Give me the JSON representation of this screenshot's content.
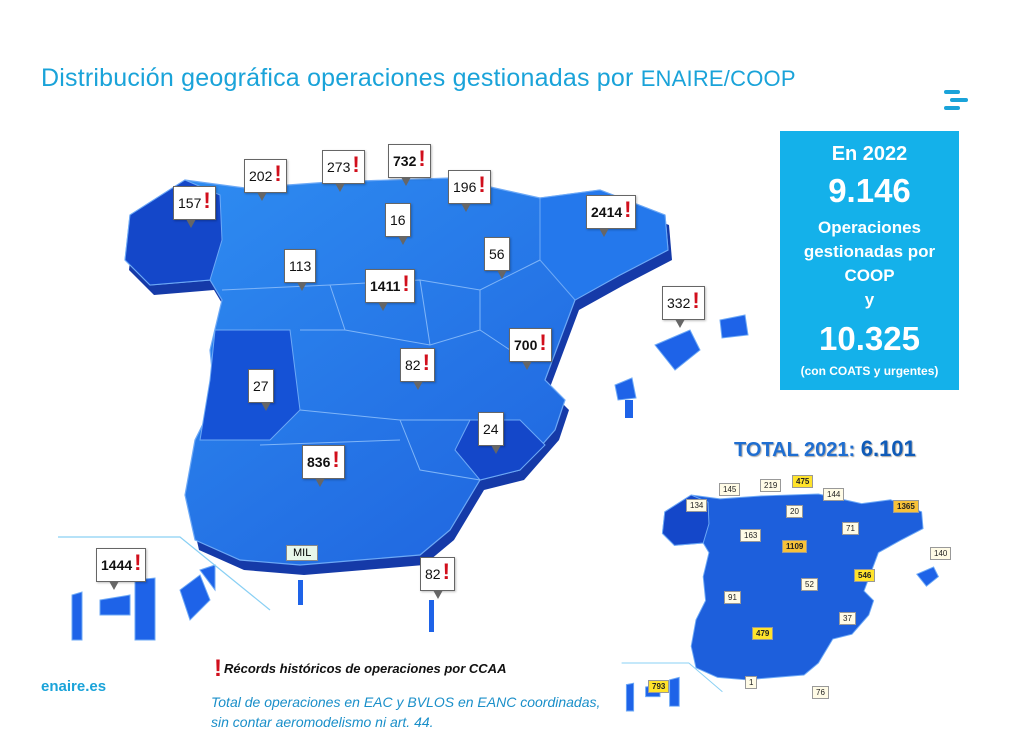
{
  "title": {
    "part1": "Distribución geográfica",
    "part2": "operaciones gestionadas por",
    "part3": "ENAIRE/COOP"
  },
  "logo": {
    "icon": "enaire-logo-icon",
    "color": "#1aa3d9"
  },
  "summary_box": {
    "line1": "En 2022",
    "line2": "9.146",
    "line3a": "Operaciones",
    "line3b": "gestionadas por",
    "line3c": "COOP",
    "line3d": "y",
    "line4": "10.325",
    "line5": "(con COATS y urgentes)",
    "color": "#14b1ea"
  },
  "total_2021": {
    "label": "TOTAL 2021:",
    "value": "6.101"
  },
  "map_2022": {
    "callouts": [
      {
        "value": "157",
        "record": true,
        "bold": false
      },
      {
        "value": "202",
        "record": true,
        "bold": false
      },
      {
        "value": "273",
        "record": true,
        "bold": false
      },
      {
        "value": "732",
        "record": true,
        "bold": true
      },
      {
        "value": "196",
        "record": true,
        "bold": false
      },
      {
        "value": "16",
        "record": false,
        "bold": false
      },
      {
        "value": "2414",
        "record": true,
        "bold": true
      },
      {
        "value": "113",
        "record": false,
        "bold": false
      },
      {
        "value": "56",
        "record": false,
        "bold": false
      },
      {
        "value": "1411",
        "record": true,
        "bold": true
      },
      {
        "value": "332",
        "record": true,
        "bold": false
      },
      {
        "value": "700",
        "record": true,
        "bold": true
      },
      {
        "value": "82",
        "record": true,
        "bold": false
      },
      {
        "value": "27",
        "record": false,
        "bold": false
      },
      {
        "value": "24",
        "record": false,
        "bold": false
      },
      {
        "value": "836",
        "record": true,
        "bold": true
      },
      {
        "value": "1444",
        "record": true,
        "bold": true
      },
      {
        "value": "82",
        "record": true,
        "bold": false
      }
    ],
    "mil_label": "MIL"
  },
  "map_2021": {
    "callouts": [
      {
        "value": "134",
        "style": "plain"
      },
      {
        "value": "145",
        "style": "plain"
      },
      {
        "value": "219",
        "style": "plain"
      },
      {
        "value": "475",
        "style": "hi"
      },
      {
        "value": "144",
        "style": "plain"
      },
      {
        "value": "20",
        "style": "plain"
      },
      {
        "value": "1365",
        "style": "orange"
      },
      {
        "value": "163",
        "style": "plain"
      },
      {
        "value": "1109",
        "style": "orange"
      },
      {
        "value": "71",
        "style": "plain"
      },
      {
        "value": "140",
        "style": "plain"
      },
      {
        "value": "546",
        "style": "hi"
      },
      {
        "value": "52",
        "style": "plain"
      },
      {
        "value": "91",
        "style": "plain"
      },
      {
        "value": "37",
        "style": "plain"
      },
      {
        "value": "479",
        "style": "hi"
      },
      {
        "value": "793",
        "style": "hi"
      },
      {
        "value": "1",
        "style": "plain"
      },
      {
        "value": "76",
        "style": "plain"
      }
    ]
  },
  "legend": {
    "record_mark": "!",
    "text": "Récords históricos de operaciones por CCAA"
  },
  "note": "Total de operaciones en EAC y BVLOS en EANC coordinadas, sin contar aeromodelismo ni art. 44.",
  "footer": {
    "site": "enaire.es"
  },
  "colors": {
    "map_dark": "#1447c9",
    "map_mid": "#1e63e8",
    "map_light": "#2b8cf0",
    "record": "#d10f1c"
  }
}
